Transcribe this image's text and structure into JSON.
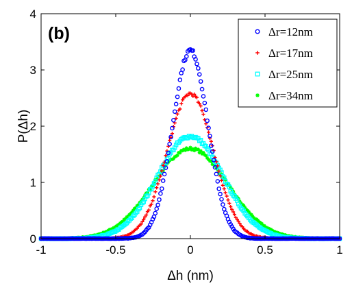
{
  "chart_data": {
    "type": "scatter",
    "panel_label": "(b)",
    "xlabel": "Δh (nm)",
    "ylabel": "P(Δh)",
    "xlim": [
      -1,
      1
    ],
    "ylim": [
      0,
      4
    ],
    "xticks": [
      "-1",
      "-0.5",
      "0",
      "0.5",
      "1"
    ],
    "yticks": [
      "0",
      "1",
      "2",
      "3",
      "4"
    ],
    "legend_position": "top-right",
    "grid": false,
    "series": [
      {
        "name": "Δr=12nm",
        "color": "#0000ff",
        "marker": "circle",
        "peak": 3.35,
        "sigma": 0.118
      },
      {
        "name": "Δr=17nm",
        "color": "#ff0000",
        "marker": "plus",
        "peak": 2.58,
        "sigma": 0.155
      },
      {
        "name": "Δr=25nm",
        "color": "#00ffff",
        "marker": "square",
        "peak": 1.82,
        "sigma": 0.22
      },
      {
        "name": "Δr=34nm",
        "color": "#00ff00",
        "marker": "asterisk",
        "peak": 1.6,
        "sigma": 0.25
      }
    ]
  }
}
